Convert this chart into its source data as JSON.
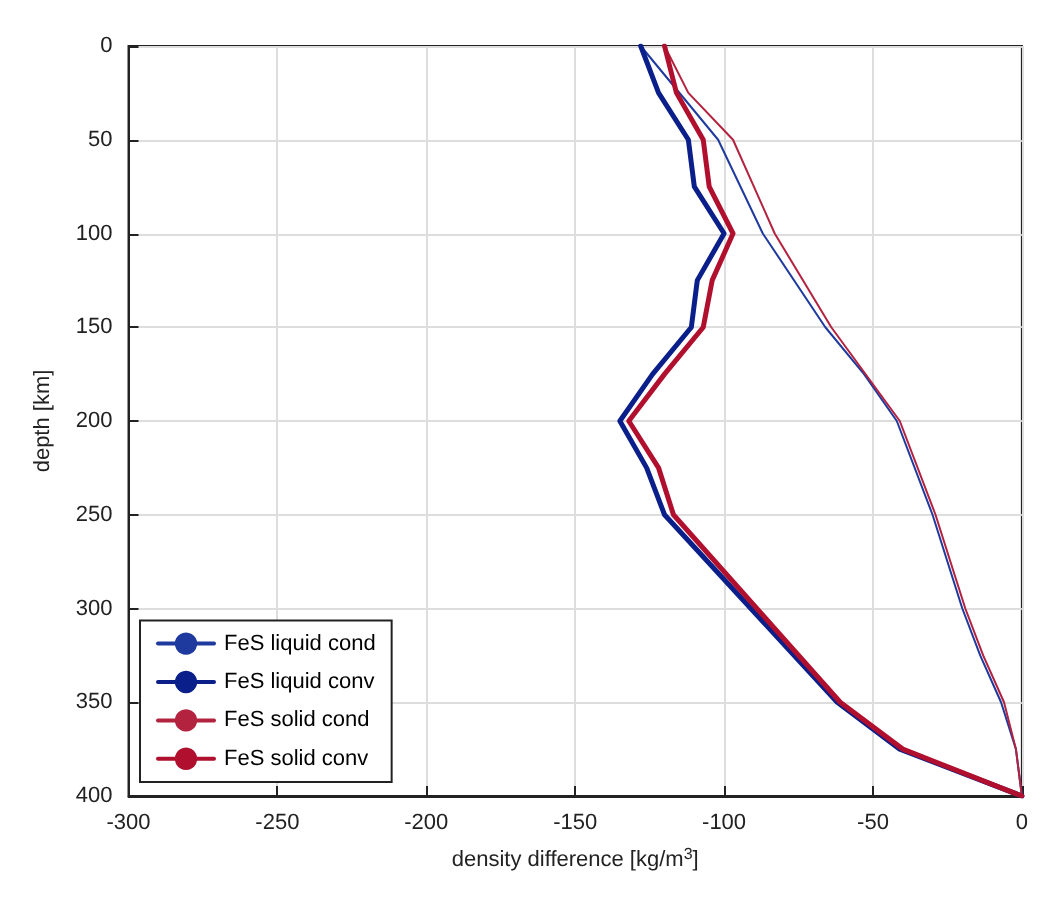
{
  "chart_data": {
    "type": "line",
    "xlabel": "density difference [kg/m$^{3}$]",
    "ylabel": "depth [km]",
    "xlim": [
      -300,
      0
    ],
    "xticks": [
      -300,
      -250,
      -200,
      -150,
      -100,
      -50,
      0
    ],
    "ylim": [
      400,
      0
    ],
    "yticks": [
      0,
      50,
      100,
      150,
      200,
      250,
      300,
      350,
      400
    ],
    "grid": true,
    "legend": "bottom left",
    "marker": "none",
    "line_style": "solid",
    "series": [
      {
        "name": "FeS liquid cond",
        "color": "#1f3a9e",
        "x": [
          -128,
          -102,
          -87,
          -66,
          -53,
          -42,
          -30,
          -20,
          -14,
          -7,
          -2,
          0
        ],
        "values": [
          0,
          50,
          100,
          150,
          175,
          200,
          250,
          300,
          325,
          350,
          375,
          400
        ]
      },
      {
        "name": "FeS liquid conv",
        "color": "#0a1f8a",
        "x": [
          -128,
          -122,
          -112,
          -110,
          -100,
          -109,
          -111,
          -124,
          -135,
          -126,
          -120,
          -62,
          -41,
          0
        ],
        "values": [
          0,
          25,
          50,
          75,
          100,
          125,
          150,
          175,
          200,
          225,
          250,
          350,
          375,
          400
        ]
      },
      {
        "name": "FeS solid cond",
        "color": "#b3223f",
        "x": [
          -120,
          -112,
          -97,
          -83,
          -64,
          -41,
          -29,
          -19,
          -13,
          -6,
          -2,
          0
        ],
        "values": [
          0,
          25,
          50,
          100,
          150,
          200,
          250,
          300,
          325,
          350,
          375,
          400
        ]
      },
      {
        "name": "FeS solid conv",
        "color": "#b0102e",
        "x": [
          -120,
          -116,
          -107,
          -105,
          -97,
          -104,
          -107,
          -120,
          -132,
          -122,
          -117,
          -61,
          -40,
          0
        ],
        "values": [
          0,
          25,
          50,
          75,
          100,
          125,
          150,
          175,
          200,
          225,
          250,
          350,
          375,
          400
        ]
      }
    ]
  }
}
